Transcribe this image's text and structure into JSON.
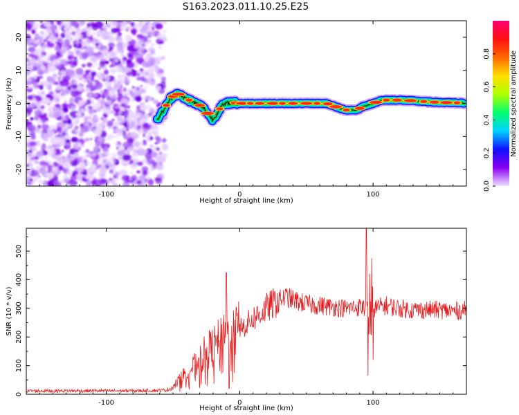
{
  "title": "S163.2023.011.10.25.E25",
  "chart_data": [
    {
      "type": "heatmap",
      "xlabel": "Height of straight line (km)",
      "ylabel": "Frequency (Hz)",
      "xlim": [
        -160,
        170
      ],
      "ylim": [
        -25,
        25
      ],
      "xticks": [
        -100,
        0,
        100
      ],
      "yticks": [
        -20,
        -10,
        0,
        10,
        20
      ],
      "noise_region_x": [
        -160,
        -62
      ],
      "ridge": {
        "description_points_x": [
          -62,
          -57,
          -52,
          -47,
          -43,
          -38,
          -33,
          -28,
          -24,
          -20,
          -17,
          -14,
          -10,
          -5,
          0,
          10,
          20,
          30,
          40,
          50,
          60,
          65,
          70,
          75,
          80,
          85,
          88,
          92,
          96,
          100,
          105,
          110,
          120,
          130,
          140,
          150,
          160,
          168
        ],
        "freq_hz": [
          -5,
          -2,
          1.5,
          3,
          2,
          1,
          0,
          -1,
          -3,
          -5,
          -3,
          -1,
          0,
          0.3,
          0,
          0,
          0,
          0,
          0,
          0,
          0,
          0,
          -0.7,
          -1.5,
          -2,
          -2,
          -2,
          -1,
          -0.5,
          0,
          0.8,
          1,
          1,
          0.8,
          0.5,
          0.3,
          0.2,
          0.1
        ]
      },
      "colorbar": {
        "label": "Normalized spectral amplitude",
        "range": [
          0,
          1
        ],
        "ticks": [
          0.0,
          0.2,
          0.4,
          0.6,
          0.8
        ],
        "colormap": [
          "#f0e0ff",
          "#8a00f0",
          "#1010ff",
          "#00d0ff",
          "#00ff70",
          "#b0ff00",
          "#ffe000",
          "#ff6a00",
          "#ff1010",
          "#ff0070"
        ]
      }
    },
    {
      "type": "line",
      "xlabel": "Height of straight line (km)",
      "ylabel": "SNR (10 * v/v)",
      "xlim": [
        -160,
        170
      ],
      "ylim": [
        0,
        580
      ],
      "xticks": [
        -100,
        0,
        100
      ],
      "yticks": [
        0,
        100,
        200,
        300,
        400,
        500
      ],
      "color": "#e41a1c",
      "envelope": {
        "x": [
          -160,
          -120,
          -80,
          -55,
          -50,
          -45,
          -40,
          -35,
          -30,
          -25,
          -20,
          -15,
          -10,
          -5,
          0,
          5,
          10,
          15,
          20,
          25,
          30,
          35,
          40,
          50,
          60,
          70,
          80,
          90,
          95,
          100,
          105,
          110,
          120,
          130,
          140,
          150,
          160,
          170
        ],
        "y": [
          12,
          12,
          12,
          14,
          25,
          50,
          80,
          95,
          120,
          150,
          165,
          185,
          200,
          215,
          230,
          245,
          265,
          280,
          300,
          315,
          330,
          340,
          330,
          315,
          310,
          305,
          300,
          305,
          300,
          300,
          305,
          310,
          300,
          295,
          295,
          295,
          290,
          295
        ]
      },
      "spikes": [
        {
          "x": -10,
          "y": 425
        },
        {
          "x": -8,
          "y": 20
        },
        {
          "x": 95,
          "y": 580
        },
        {
          "x": 96,
          "y": 65
        },
        {
          "x": 97,
          "y": 390
        },
        {
          "x": 99,
          "y": 475
        },
        {
          "x": 100,
          "y": 120
        }
      ]
    }
  ]
}
